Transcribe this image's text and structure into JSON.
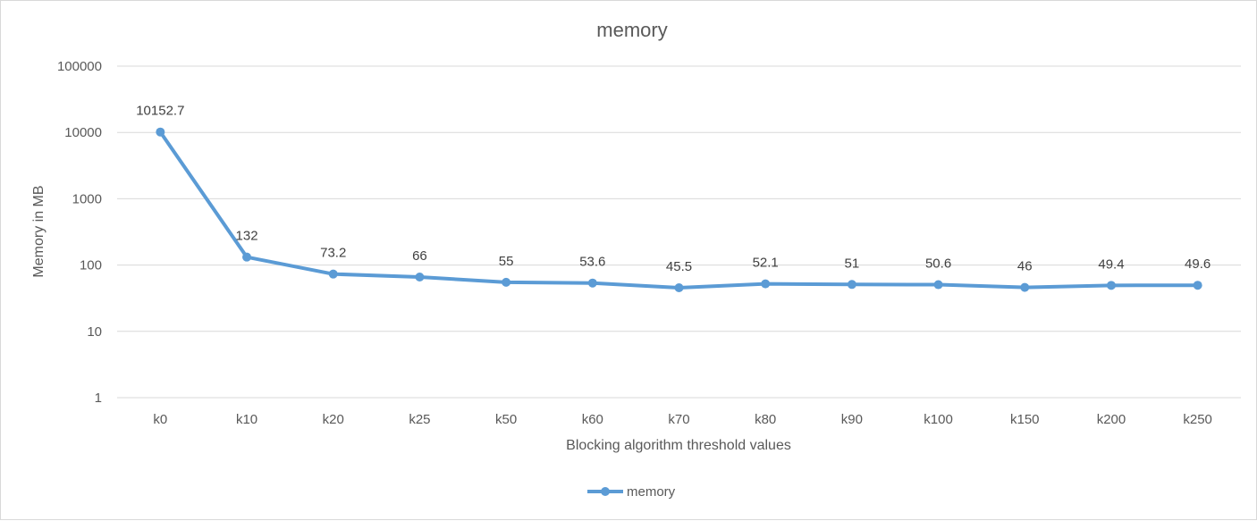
{
  "chart_data": {
    "type": "line",
    "title": "memory",
    "xlabel": "Blocking algorithm threshold values",
    "ylabel": "Memory in MB",
    "yscale": "log",
    "ylim": [
      1,
      100000
    ],
    "yticks": [
      "1",
      "10",
      "100",
      "1000",
      "10000",
      "100000"
    ],
    "grid": true,
    "legend_position": "bottom",
    "categories": [
      "k0",
      "k10",
      "k20",
      "k25",
      "k50",
      "k60",
      "k70",
      "k80",
      "k90",
      "k100",
      "k150",
      "k200",
      "k250"
    ],
    "series": [
      {
        "name": "memory",
        "color": "#5b9bd5",
        "values": [
          10152.7,
          132,
          73.2,
          66,
          55,
          53.6,
          45.5,
          52.1,
          51,
          50.6,
          46,
          49.4,
          49.6
        ],
        "labels": [
          "10152.7",
          "132",
          "73.2",
          "66",
          "55",
          "53.6",
          "45.5",
          "52.1",
          "51",
          "50.6",
          "46",
          "49.4",
          "49.6"
        ]
      }
    ]
  }
}
